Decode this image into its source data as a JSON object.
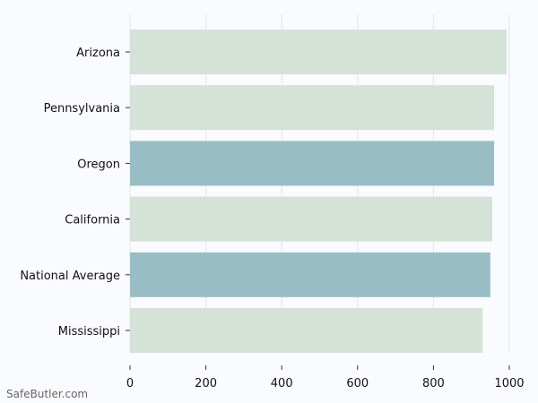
{
  "watermark": "SafeButler.com",
  "colors": {
    "background": "#fafbff",
    "bar_default": "#d5e2d8",
    "bar_highlight": "#98bdc5",
    "grid": "#e6e6ea",
    "text": "#111111"
  },
  "chart_data": {
    "type": "bar",
    "orientation": "horizontal",
    "title": "",
    "xlabel": "",
    "ylabel": "",
    "categories": [
      "Arizona",
      "Pennsylvania",
      "Oregon",
      "California",
      "National Average",
      "Mississippi"
    ],
    "values": [
      993,
      960,
      960,
      955,
      950,
      930
    ],
    "highlighted": [
      false,
      false,
      true,
      false,
      true,
      false
    ],
    "xlim": [
      0,
      1000
    ],
    "xticks": [
      0,
      200,
      400,
      600,
      800,
      1000
    ],
    "grid": true,
    "legend": "none"
  }
}
